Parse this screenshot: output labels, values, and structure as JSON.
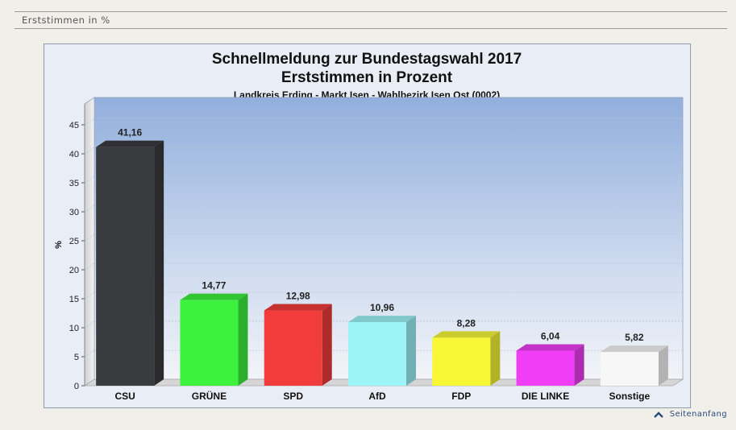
{
  "section": {
    "title": "Erststimmen in %"
  },
  "footer": {
    "link_label": "Seitenanfang",
    "icon": "arrow-up-icon"
  },
  "colors": {
    "bars": [
      "#3a3b3f",
      "#3cf23c",
      "#f23c3c",
      "#9df4f8",
      "#f7f736",
      "#ef3ef5",
      "#f7f7f7"
    ]
  },
  "chart_data": {
    "type": "bar",
    "title": "Schnellmeldung zur Bundestagswahl 2017",
    "subtitle": "Erststimmen in Prozent",
    "subsubtitle": "Landkreis Erding - Markt Isen - Wahlbezirk Isen Ost (0002)",
    "ylabel": "%",
    "xlabel": "",
    "categories": [
      "CSU",
      "GRÜNE",
      "SPD",
      "AfD",
      "FDP",
      "DIE LINKE",
      "Sonstige"
    ],
    "values": [
      41.16,
      14.77,
      12.98,
      10.96,
      8.28,
      6.04,
      5.82
    ],
    "value_labels": [
      "41,16",
      "14,77",
      "12,98",
      "10,96",
      "8,28",
      "6,04",
      "5,82"
    ],
    "ylim": [
      0,
      45
    ],
    "yticks": [
      "0",
      "5",
      "10",
      "15",
      "20",
      "25",
      "30",
      "35",
      "40",
      "45"
    ],
    "grid": true,
    "legend": "none"
  }
}
